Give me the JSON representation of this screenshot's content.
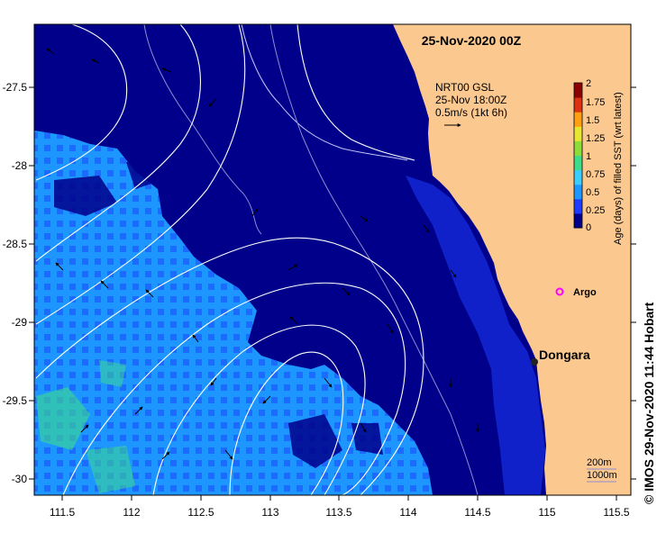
{
  "map": {
    "title": "25-Nov-2020 00Z",
    "current_label_lines": [
      "NRT00 GSL",
      "25-Nov 18:00Z",
      "0.5m/s (1kt 6h)"
    ],
    "colorbar": {
      "title": "Age (days) of filled SST (wrt latest)",
      "ticks": [
        "0",
        "0.25",
        "0.5",
        "0.75",
        "1",
        "1.25",
        "1.5",
        "1.75",
        "2"
      ],
      "colors": [
        "#00008b",
        "#1e3cff",
        "#1e96ff",
        "#3ccdff",
        "#3cdc8c",
        "#8cdc3c",
        "#e6e632",
        "#ffa014",
        "#dc3214",
        "#8b0000"
      ]
    },
    "places": [
      {
        "name": "Dongara",
        "lon": 114.93,
        "lat": -29.25,
        "marker": "dot"
      },
      {
        "name": "Argo",
        "lon": 115.13,
        "lat": -28.83,
        "marker": "star"
      }
    ],
    "isobath_labels": [
      "200m",
      "1000m"
    ],
    "credit": "© IMOS 29-Nov-2020 11:44 Hobart",
    "axes": {
      "lon_ticks": [
        "111.5",
        "112",
        "112.5",
        "113",
        "113.5",
        "114",
        "114.5",
        "115",
        "115.5"
      ],
      "lat_ticks": [
        "-27.5",
        "-28",
        "-28.5",
        "-29",
        "-29.5",
        "-30"
      ],
      "lon_range": [
        111.3,
        115.6
      ],
      "lat_range": [
        -27.1,
        -30.1
      ]
    },
    "colors": {
      "land": "#fbc890",
      "ocean_deep": "#00008b",
      "ocean_mid": "#1e3cff",
      "ocean_light": "#1e96ff",
      "contour": "#ffffff",
      "argo": "#ff00ff"
    }
  }
}
